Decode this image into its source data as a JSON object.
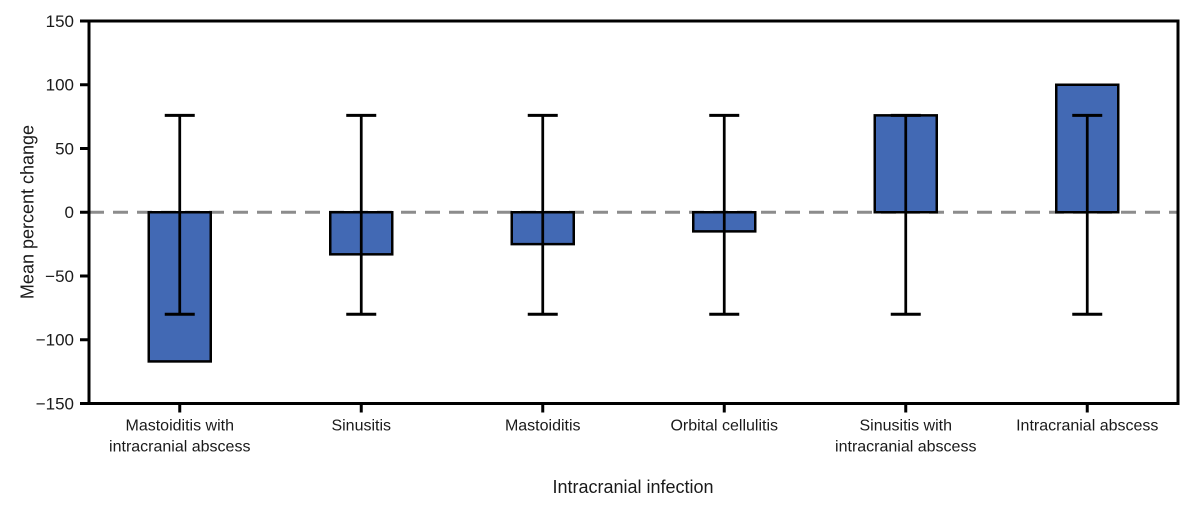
{
  "chart_data": {
    "type": "bar",
    "title": "",
    "xlabel": "Intracranial infection",
    "ylabel": "Mean percent change",
    "ylim": [
      -150,
      150
    ],
    "yticks": [
      150,
      100,
      50,
      0,
      -50,
      -100,
      -150
    ],
    "ytick_labels": [
      "150",
      "100",
      "50",
      "0",
      "−50",
      "−100",
      "−150"
    ],
    "grid": "off",
    "legend": "none",
    "zero_line": {
      "value": 0,
      "style": "dashed",
      "color": "#8c8c8c"
    },
    "bar_color": "#4269b4",
    "bar_border_color": "#000000",
    "axis_color": "#000000",
    "text_color": "#1a1a1a",
    "categories": [
      "Mastoiditis with\nintracranial abscess",
      "Sinusitis",
      "Mastoiditis",
      "Orbital cellulitis",
      "Sinusitis with\nintracranial abscess",
      "Intracranial abscess"
    ],
    "values": [
      -117,
      -33,
      -25,
      -15,
      76,
      100
    ],
    "error_bars": {
      "low": [
        -80,
        -80,
        -80,
        -80,
        -80,
        -80
      ],
      "high": [
        76,
        76,
        76,
        76,
        76,
        76
      ]
    }
  }
}
